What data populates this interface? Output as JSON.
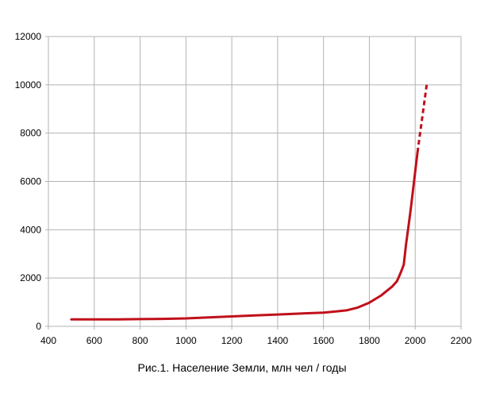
{
  "chart_data": {
    "type": "line",
    "title": "Рис.1.  Население Земли,  млн чел / годы",
    "xlabel": "",
    "ylabel": "",
    "xlim": [
      400,
      2200
    ],
    "ylim": [
      0,
      12000
    ],
    "x_ticks": [
      400,
      600,
      800,
      1000,
      1200,
      1400,
      1600,
      1800,
      2000,
      2200
    ],
    "y_ticks": [
      0,
      2000,
      4000,
      6000,
      8000,
      10000,
      12000
    ],
    "grid": true,
    "legend": "none",
    "series": [
      {
        "color": "#c0101a",
        "style": "solid",
        "x": [
          500,
          600,
          700,
          800,
          900,
          1000,
          1100,
          1200,
          1300,
          1400,
          1500,
          1600,
          1650,
          1700,
          1750,
          1800,
          1850,
          1900,
          1920,
          1930,
          1940,
          1950,
          1960,
          1970,
          1980,
          1990,
          2000,
          2010
        ],
        "y": [
          290,
          290,
          290,
          300,
          310,
          330,
          370,
          410,
          450,
          490,
          530,
          570,
          610,
          660,
          780,
          980,
          1270,
          1650,
          1860,
          2070,
          2300,
          2550,
          3400,
          4100,
          4800,
          5600,
          6400,
          7200
        ]
      },
      {
        "color": "#c0101a",
        "style": "dashed",
        "x": [
          2010,
          2020,
          2030,
          2040,
          2050
        ],
        "y": [
          7200,
          7900,
          8600,
          9300,
          10000
        ]
      }
    ]
  }
}
